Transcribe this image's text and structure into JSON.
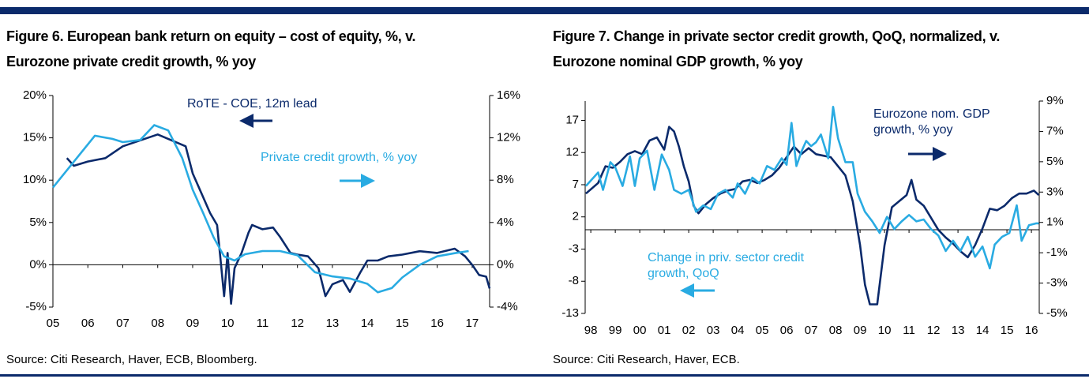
{
  "chart_data": [
    {
      "type": "line",
      "title": [
        "Figure 6. European bank return on equity – cost of equity, %,  v.",
        "Eurozone private credit growth, % yoy"
      ],
      "source": "Source: Citi Research, Haver, ECB, Bloomberg.",
      "xlim": [
        2005,
        2017.5
      ],
      "xticks": [
        {
          "value": 2005,
          "label": "05"
        },
        {
          "value": 2006,
          "label": "06"
        },
        {
          "value": 2007,
          "label": "07"
        },
        {
          "value": 2008,
          "label": "08"
        },
        {
          "value": 2009,
          "label": "09"
        },
        {
          "value": 2010,
          "label": "10"
        },
        {
          "value": 2011,
          "label": "11"
        },
        {
          "value": 2012,
          "label": "12"
        },
        {
          "value": 2013,
          "label": "13"
        },
        {
          "value": 2014,
          "label": "14"
        },
        {
          "value": 2015,
          "label": "15"
        },
        {
          "value": 2016,
          "label": "16"
        },
        {
          "value": 2017,
          "label": "17"
        }
      ],
      "ylim": [
        -5,
        20
      ],
      "yticks": [
        {
          "value": -5,
          "label": "-5%"
        },
        {
          "value": 0,
          "label": "0%"
        },
        {
          "value": 5,
          "label": "5%"
        },
        {
          "value": 10,
          "label": "10%"
        },
        {
          "value": 15,
          "label": "15%"
        },
        {
          "value": 20,
          "label": "20%"
        }
      ],
      "y2lim": [
        -4,
        16
      ],
      "y2ticks": [
        {
          "value": -4,
          "label": "-4%"
        },
        {
          "value": 0,
          "label": "0%"
        },
        {
          "value": 4,
          "label": "4%"
        },
        {
          "value": 8,
          "label": "8%"
        },
        {
          "value": 12,
          "label": "12%"
        },
        {
          "value": 16,
          "label": "16%"
        }
      ],
      "series": [
        {
          "name": "RoTE - COE, 12m lead",
          "color": "#0b2a6b",
          "axis": "y",
          "x": [
            2005.4,
            2005.6,
            2006,
            2006.5,
            2007,
            2007.5,
            2008,
            2008.4,
            2008.8,
            2009,
            2009.3,
            2009.5,
            2009.7,
            2009.8,
            2009.9,
            2010,
            2010.1,
            2010.2,
            2010.4,
            2010.6,
            2010.7,
            2011,
            2011.3,
            2011.5,
            2011.8,
            2012,
            2012.3,
            2012.6,
            2012.8,
            2013,
            2013.3,
            2013.5,
            2013.8,
            2014,
            2014.3,
            2014.6,
            2015,
            2015.5,
            2016,
            2016.5,
            2016.8,
            2017,
            2017.2,
            2017.4,
            2017.5
          ],
          "values": [
            12.6,
            11.7,
            12.2,
            12.6,
            14.0,
            14.7,
            15.4,
            14.7,
            14.0,
            10.8,
            8.0,
            6.1,
            4.7,
            0.5,
            -3.7,
            1.4,
            -4.6,
            -0.4,
            1.4,
            3.8,
            4.7,
            4.2,
            4.4,
            3.3,
            1.4,
            1.2,
            1.0,
            -0.4,
            -3.7,
            -2.3,
            -1.8,
            -3.2,
            -0.9,
            0.5,
            0.5,
            1.0,
            1.2,
            1.6,
            1.4,
            1.9,
            1.0,
            0.0,
            -1.2,
            -1.4,
            -2.8
          ]
        },
        {
          "name": "Private credit growth, % yoy",
          "color": "#29abe2",
          "axis": "y2",
          "x": [
            2005,
            2006.2,
            2006.7,
            2007,
            2007.5,
            2007.9,
            2008.3,
            2008.7,
            2009,
            2009.3,
            2009.6,
            2009.9,
            2010.2,
            2010.5,
            2011,
            2011.5,
            2012,
            2012.5,
            2013,
            2013.5,
            2014,
            2014.3,
            2014.7,
            2015,
            2015.5,
            2016,
            2016.5,
            2016.9
          ],
          "values": [
            7.3,
            12.2,
            11.9,
            11.6,
            11.8,
            13.2,
            12.7,
            10.1,
            7.1,
            4.9,
            2.6,
            0.8,
            0.4,
            1.0,
            1.3,
            1.3,
            0.9,
            -0.7,
            -1.1,
            -1.3,
            -1.8,
            -2.6,
            -2.2,
            -1.2,
            0.0,
            0.8,
            1.1,
            1.3
          ]
        }
      ]
    },
    {
      "type": "line",
      "title": [
        "Figure 7. Change in private sector credit growth, QoQ, normalized, v.",
        "Eurozone nominal GDP growth, % yoy"
      ],
      "source": "Source: Citi Research, Haver, ECB.",
      "xlim": [
        1997.77,
        2016.32
      ],
      "xticks": [
        {
          "value": 1998,
          "label": "98"
        },
        {
          "value": 1999,
          "label": "99"
        },
        {
          "value": 2000,
          "label": "00"
        },
        {
          "value": 2001,
          "label": "01"
        },
        {
          "value": 2002,
          "label": "02"
        },
        {
          "value": 2003,
          "label": "03"
        },
        {
          "value": 2004,
          "label": "04"
        },
        {
          "value": 2005,
          "label": "05"
        },
        {
          "value": 2006,
          "label": "06"
        },
        {
          "value": 2007,
          "label": "07"
        },
        {
          "value": 2008,
          "label": "08"
        },
        {
          "value": 2009,
          "label": "09"
        },
        {
          "value": 2010,
          "label": "10"
        },
        {
          "value": 2011,
          "label": "11"
        },
        {
          "value": 2012,
          "label": "12"
        },
        {
          "value": 2013,
          "label": "13"
        },
        {
          "value": 2014,
          "label": "14"
        },
        {
          "value": 2015,
          "label": "15"
        },
        {
          "value": 2016,
          "label": "16"
        }
      ],
      "ylim": [
        -13,
        20
      ],
      "yticks": [
        -13,
        -8,
        -3,
        2,
        7,
        12,
        17
      ],
      "y2lim": [
        -5,
        9
      ],
      "y2ticks": [
        {
          "value": -5,
          "label": "-5%"
        },
        {
          "value": -3,
          "label": "-3%"
        },
        {
          "value": -1,
          "label": "-1%"
        },
        {
          "value": 1,
          "label": "1%"
        },
        {
          "value": 3,
          "label": "3%"
        },
        {
          "value": 5,
          "label": "5%"
        },
        {
          "value": 7,
          "label": "7%"
        },
        {
          "value": 9,
          "label": "9%"
        }
      ],
      "series": [
        {
          "name": "Eurozone nom. GDP growth, % yoy",
          "color": "#0b2a6b",
          "axis": "y2",
          "x": [
            1997.8,
            1998.3,
            1998.6,
            1998.9,
            1999.2,
            1999.5,
            1999.8,
            2000.1,
            2000.4,
            2000.7,
            2001,
            2001.2,
            2001.4,
            2001.6,
            2001.8,
            2002,
            2002.2,
            2002.4,
            2002.7,
            2003,
            2003.3,
            2003.6,
            2003.9,
            2004.2,
            2004.5,
            2004.8,
            2005.1,
            2005.4,
            2005.7,
            2006,
            2006.3,
            2006.6,
            2006.9,
            2007.2,
            2007.5,
            2007.8,
            2008.1,
            2008.4,
            2008.7,
            2009,
            2009.2,
            2009.4,
            2009.7,
            2010,
            2010.3,
            2010.6,
            2010.9,
            2011.1,
            2011.3,
            2011.6,
            2011.9,
            2012.2,
            2012.5,
            2012.8,
            2013.1,
            2013.4,
            2013.7,
            2014,
            2014.3,
            2014.6,
            2014.9,
            2015.2,
            2015.5,
            2015.8,
            2016.1,
            2016.3
          ],
          "values": [
            2.9,
            3.6,
            4.7,
            4.6,
            5.0,
            5.5,
            5.7,
            5.5,
            6.4,
            6.6,
            5.8,
            7.3,
            7.0,
            6.0,
            4.7,
            3.7,
            2.1,
            1.6,
            2.2,
            2.6,
            2.9,
            3.1,
            3.2,
            3.7,
            3.8,
            3.6,
            3.8,
            4.1,
            4.6,
            5.3,
            6.0,
            5.5,
            5.9,
            5.5,
            5.4,
            5.3,
            4.7,
            4.1,
            2.4,
            -0.5,
            -3.1,
            -4.4,
            -4.4,
            -0.5,
            2.0,
            2.4,
            2.8,
            3.8,
            2.5,
            2.1,
            1.3,
            0.5,
            0.0,
            -0.4,
            -0.9,
            -1.3,
            -0.5,
            0.6,
            1.9,
            1.8,
            2.1,
            2.6,
            2.9,
            2.9,
            3.1,
            2.8
          ]
        },
        {
          "name": "Change in priv. sector credit growth, QoQ",
          "color": "#29abe2",
          "axis": "y",
          "x": [
            1997.8,
            1998.3,
            1998.5,
            1998.8,
            1999,
            1999.3,
            1999.6,
            1999.8,
            2000,
            2000.3,
            2000.6,
            2000.9,
            2001.2,
            2001.4,
            2001.7,
            2002,
            2002.3,
            2002.6,
            2002.9,
            2003.2,
            2003.5,
            2003.8,
            2004,
            2004.3,
            2004.6,
            2004.9,
            2005.2,
            2005.5,
            2005.8,
            2006,
            2006.2,
            2006.4,
            2006.6,
            2006.8,
            2007,
            2007.2,
            2007.4,
            2007.7,
            2007.9,
            2008.1,
            2008.4,
            2008.7,
            2008.9,
            2009.2,
            2009.5,
            2009.8,
            2010.1,
            2010.4,
            2010.7,
            2011,
            2011.3,
            2011.6,
            2011.9,
            2012.2,
            2012.5,
            2012.8,
            2013.1,
            2013.4,
            2013.7,
            2014,
            2014.3,
            2014.5,
            2014.8,
            2015.1,
            2015.4,
            2015.6,
            2015.9,
            2016.2,
            2016.3
          ],
          "values": [
            6.8,
            8.9,
            6.2,
            10.5,
            9.7,
            6.8,
            11.4,
            6.8,
            11.1,
            12.3,
            6.2,
            11.7,
            9.3,
            6.2,
            5.6,
            6.2,
            2.8,
            3.8,
            3.2,
            5.6,
            6.2,
            5.0,
            7.2,
            5.6,
            8.1,
            7.2,
            9.9,
            9.3,
            11.1,
            10.1,
            16.6,
            9.9,
            12.1,
            13.8,
            13.0,
            13.6,
            14.8,
            11.1,
            19.1,
            14.2,
            10.5,
            10.5,
            5.6,
            2.8,
            1.3,
            -0.5,
            2.0,
            0.1,
            1.3,
            2.3,
            1.3,
            1.6,
            0.1,
            -0.9,
            -3.3,
            -1.7,
            -3.3,
            -1.1,
            -4.2,
            -2.6,
            -6.0,
            -2.3,
            -1.1,
            -0.5,
            3.8,
            -1.7,
            0.7,
            1.0,
            1.0
          ]
        }
      ]
    }
  ]
}
